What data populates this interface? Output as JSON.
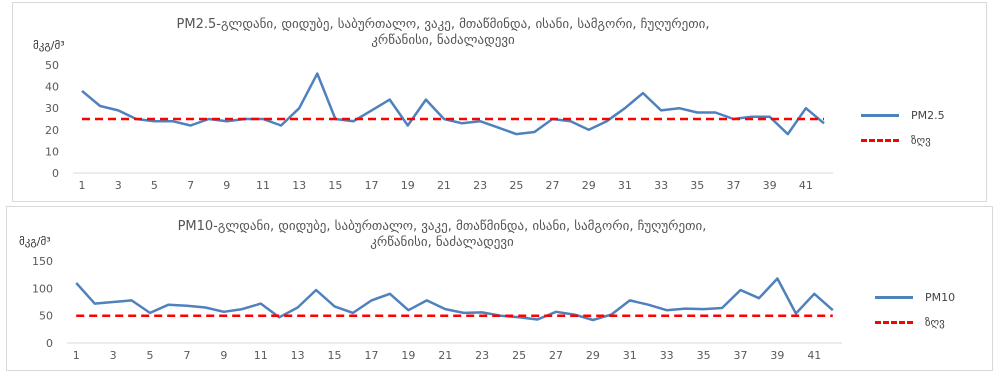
{
  "chart_data": [
    {
      "type": "line",
      "title": "PM2.5-გლდანი, დიდუბე, საბურთალო, ვაკე, მთაწმინდა, ისანი, სამგორი, ჩუღურეთი, კრწანისი, ნაძალადევი",
      "ylabel": "მკგ/მ³",
      "ylim": [
        0,
        50
      ],
      "yticks": [
        0,
        10,
        20,
        30,
        40,
        50
      ],
      "x": [
        1,
        2,
        3,
        4,
        5,
        6,
        7,
        8,
        9,
        10,
        11,
        12,
        13,
        14,
        15,
        16,
        17,
        18,
        19,
        20,
        21,
        22,
        23,
        24,
        25,
        26,
        27,
        28,
        29,
        30,
        31,
        32,
        33,
        34,
        35,
        36,
        37,
        38,
        39,
        40,
        41,
        42
      ],
      "xtick_labels": [
        "1",
        "3",
        "5",
        "7",
        "9",
        "11",
        "13",
        "15",
        "17",
        "19",
        "21",
        "23",
        "25",
        "27",
        "29",
        "31",
        "33",
        "35",
        "37",
        "39",
        "41"
      ],
      "series": [
        {
          "name": "PM2.5",
          "style": "solid",
          "color": "#4f81bd",
          "values": [
            38,
            31,
            29,
            25,
            24,
            24,
            22,
            25,
            24,
            25,
            25,
            22,
            30,
            46,
            25,
            24,
            29,
            34,
            22,
            34,
            25,
            23,
            24,
            21,
            18,
            19,
            25,
            24,
            20,
            24,
            30,
            37,
            29,
            30,
            28,
            28,
            25,
            26,
            26,
            18,
            30,
            23
          ]
        },
        {
          "name": "ზღვ",
          "style": "dashed",
          "color": "#ff0000",
          "values": [
            25,
            25,
            25,
            25,
            25,
            25,
            25,
            25,
            25,
            25,
            25,
            25,
            25,
            25,
            25,
            25,
            25,
            25,
            25,
            25,
            25,
            25,
            25,
            25,
            25,
            25,
            25,
            25,
            25,
            25,
            25,
            25,
            25,
            25,
            25,
            25,
            25,
            25,
            25,
            25,
            25,
            25
          ]
        }
      ],
      "legend": "right"
    },
    {
      "type": "line",
      "title": "PM10-გლდანი, დიდუბე, საბურთალო, ვაკე, მთაწმინდა, ისანი, სამგორი, ჩუღურეთი, კრწანისი, ნაძალადევი",
      "ylabel": "მკგ/მ³",
      "ylim": [
        0,
        150
      ],
      "yticks": [
        0,
        50,
        100,
        150
      ],
      "x": [
        1,
        2,
        3,
        4,
        5,
        6,
        7,
        8,
        9,
        10,
        11,
        12,
        13,
        14,
        15,
        16,
        17,
        18,
        19,
        20,
        21,
        22,
        23,
        24,
        25,
        26,
        27,
        28,
        29,
        30,
        31,
        32,
        33,
        34,
        35,
        36,
        37,
        38,
        39,
        40,
        41,
        42
      ],
      "xtick_labels": [
        "1",
        "3",
        "5",
        "7",
        "9",
        "11",
        "13",
        "15",
        "17",
        "19",
        "21",
        "23",
        "25",
        "27",
        "29",
        "31",
        "33",
        "35",
        "37",
        "39",
        "41"
      ],
      "series": [
        {
          "name": "PM10",
          "style": "solid",
          "color": "#4f81bd",
          "values": [
            110,
            72,
            75,
            78,
            55,
            70,
            68,
            65,
            57,
            62,
            72,
            47,
            65,
            97,
            67,
            55,
            78,
            90,
            60,
            78,
            62,
            55,
            56,
            50,
            47,
            43,
            57,
            52,
            42,
            52,
            78,
            70,
            60,
            63,
            62,
            64,
            97,
            82,
            118,
            54,
            90,
            60
          ]
        },
        {
          "name": "ზღვ",
          "style": "dashed",
          "color": "#ff0000",
          "values": [
            50,
            50,
            50,
            50,
            50,
            50,
            50,
            50,
            50,
            50,
            50,
            50,
            50,
            50,
            50,
            50,
            50,
            50,
            50,
            50,
            50,
            50,
            50,
            50,
            50,
            50,
            50,
            50,
            50,
            50,
            50,
            50,
            50,
            50,
            50,
            50,
            50,
            50,
            50,
            50,
            50,
            50
          ]
        }
      ],
      "legend": "right"
    }
  ]
}
